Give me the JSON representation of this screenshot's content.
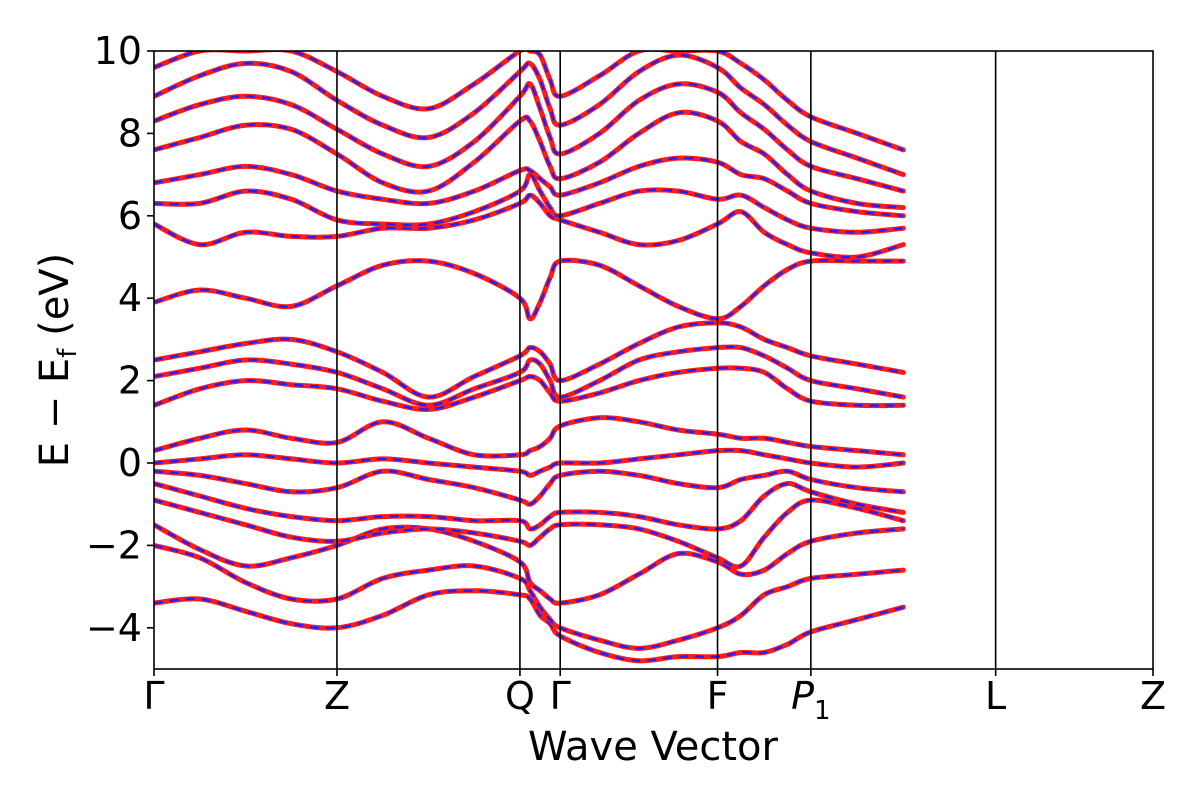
{
  "chart_data": {
    "type": "line",
    "title": "",
    "xlabel": "Wave Vector",
    "ylabel": "E − E_f (eV)",
    "ylabel_parts": {
      "main": "E − E",
      "sub": "f",
      "unit": " (eV)"
    },
    "ylim": [
      -5,
      10
    ],
    "y_ticks": [
      -4,
      -2,
      0,
      2,
      4,
      6,
      8,
      10
    ],
    "y_tick_labels": [
      "−4",
      "−2",
      "0",
      "2",
      "4",
      "6",
      "8",
      "10"
    ],
    "x_ticks": [
      0,
      1,
      2,
      2.22,
      3.08,
      3.59,
      4.6,
      5.46
    ],
    "x_tick_labels": [
      {
        "main": "Γ",
        "sub": ""
      },
      {
        "main": "Z",
        "sub": ""
      },
      {
        "main": "Q",
        "sub": ""
      },
      {
        "main": "Γ",
        "sub": ""
      },
      {
        "main": "F",
        "sub": ""
      },
      {
        "main": "P",
        "sub": "1",
        "italic": true
      },
      {
        "main": "L",
        "sub": ""
      },
      {
        "main": "Z",
        "sub": ""
      }
    ],
    "xlim": [
      0,
      5.46
    ],
    "grid": false,
    "legend": "none",
    "colors": {
      "series_a": "#ff1a1a",
      "series_b": "#1f1fff",
      "axis": "#000000"
    },
    "series_styles": [
      {
        "color": "#ff1a1a",
        "dash": "solid"
      },
      {
        "color": "#1f1fff",
        "dash": "dashed"
      }
    ],
    "bands": [
      [
        -3.4,
        -3.3,
        -3.6,
        -3.9,
        -4.0,
        -3.7,
        -3.2,
        -3.1,
        -3.2,
        -3.3,
        -3.7,
        -3.9,
        -4.2,
        -4.6,
        -4.8,
        -4.7,
        -4.7,
        -4.6,
        -4.6,
        -4.4,
        -4.1,
        -3.8,
        -3.5
      ],
      [
        -2.0,
        -2.3,
        -2.9,
        -3.3,
        -3.3,
        -2.8,
        -2.6,
        -2.5,
        -2.8,
        -3.1,
        -3.5,
        -3.8,
        -4.0,
        -4.3,
        -4.5,
        -4.3,
        -4.0,
        -3.7,
        -3.2,
        -3.0,
        -2.8,
        -2.7,
        -2.6
      ],
      [
        -1.5,
        -2.1,
        -2.5,
        -2.3,
        -2.0,
        -1.6,
        -1.6,
        -1.9,
        -2.4,
        -2.9,
        -3.1,
        -3.3,
        -3.4,
        -3.2,
        -2.7,
        -2.2,
        -2.4,
        -2.7,
        -2.6,
        -2.2,
        -1.9,
        -1.7,
        -1.6
      ],
      [
        -0.9,
        -1.2,
        -1.5,
        -1.8,
        -1.9,
        -1.7,
        -1.6,
        -1.7,
        -1.9,
        -2.0,
        -1.8,
        -1.6,
        -1.5,
        -1.5,
        -1.6,
        -1.9,
        -2.3,
        -2.5,
        -1.8,
        -1.2,
        -0.9,
        -1.1,
        -1.4
      ],
      [
        -0.5,
        -0.8,
        -1.1,
        -1.3,
        -1.4,
        -1.3,
        -1.3,
        -1.4,
        -1.4,
        -1.6,
        -1.5,
        -1.3,
        -1.2,
        -1.2,
        -1.3,
        -1.5,
        -1.6,
        -1.4,
        -0.8,
        -0.5,
        -0.7,
        -1.0,
        -1.2
      ],
      [
        -0.2,
        -0.3,
        -0.5,
        -0.7,
        -0.6,
        -0.2,
        -0.4,
        -0.6,
        -0.9,
        -1.0,
        -0.8,
        -0.5,
        -0.3,
        -0.2,
        -0.3,
        -0.5,
        -0.6,
        -0.4,
        -0.3,
        -0.2,
        -0.4,
        -0.6,
        -0.7
      ],
      [
        0.0,
        0.1,
        0.2,
        0.1,
        0.0,
        0.1,
        0.0,
        -0.1,
        -0.2,
        -0.3,
        -0.2,
        -0.1,
        0.0,
        0.0,
        0.1,
        0.2,
        0.3,
        0.3,
        0.2,
        0.1,
        0.0,
        -0.1,
        0.0
      ],
      [
        0.3,
        0.6,
        0.8,
        0.6,
        0.5,
        1.0,
        0.6,
        0.2,
        0.2,
        0.3,
        0.4,
        0.6,
        0.9,
        1.1,
        1.0,
        0.8,
        0.7,
        0.6,
        0.6,
        0.5,
        0.4,
        0.3,
        0.2
      ],
      [
        1.4,
        1.8,
        2.0,
        1.9,
        1.8,
        1.5,
        1.3,
        1.6,
        2.0,
        2.1,
        2.0,
        1.7,
        1.5,
        1.7,
        2.0,
        2.2,
        2.3,
        2.3,
        2.2,
        1.8,
        1.5,
        1.4,
        1.4
      ],
      [
        2.1,
        2.3,
        2.5,
        2.4,
        2.2,
        1.8,
        1.4,
        1.8,
        2.2,
        2.5,
        2.4,
        2.0,
        1.6,
        2.0,
        2.5,
        2.7,
        2.8,
        2.8,
        2.6,
        2.3,
        2.0,
        1.8,
        1.6
      ],
      [
        2.5,
        2.7,
        2.9,
        3.0,
        2.7,
        2.2,
        1.6,
        2.1,
        2.6,
        2.8,
        2.7,
        2.4,
        2.0,
        2.4,
        2.9,
        3.3,
        3.4,
        3.3,
        3.0,
        2.8,
        2.6,
        2.4,
        2.2
      ],
      [
        3.9,
        4.2,
        4.0,
        3.8,
        4.3,
        4.8,
        4.9,
        4.6,
        4.0,
        3.5,
        3.9,
        4.5,
        4.9,
        4.8,
        4.3,
        3.8,
        3.5,
        3.8,
        4.3,
        4.7,
        4.9,
        4.9,
        4.9
      ],
      [
        5.8,
        5.3,
        5.6,
        5.5,
        5.5,
        5.7,
        5.7,
        5.9,
        6.3,
        6.5,
        6.3,
        6.0,
        5.9,
        5.6,
        5.3,
        5.4,
        5.8,
        6.1,
        5.6,
        5.3,
        5.1,
        5.0,
        5.3
      ],
      [
        6.3,
        6.3,
        6.6,
        6.4,
        5.9,
        5.8,
        5.8,
        6.1,
        6.6,
        7.0,
        6.6,
        6.2,
        6.0,
        6.3,
        6.6,
        6.6,
        6.4,
        6.5,
        6.2,
        5.9,
        5.7,
        5.6,
        5.7
      ],
      [
        6.8,
        7.0,
        7.2,
        7.0,
        6.6,
        6.4,
        6.3,
        6.6,
        7.1,
        7.1,
        6.9,
        6.7,
        6.5,
        6.8,
        7.2,
        7.4,
        7.3,
        7.0,
        6.9,
        6.6,
        6.3,
        6.1,
        6.0
      ],
      [
        7.6,
        7.9,
        8.2,
        8.1,
        7.5,
        6.8,
        6.6,
        7.3,
        8.3,
        8.3,
        7.8,
        7.2,
        6.9,
        7.3,
        8.0,
        8.5,
        8.3,
        7.8,
        7.5,
        7.0,
        6.6,
        6.3,
        6.2
      ],
      [
        8.3,
        8.7,
        8.9,
        8.7,
        8.1,
        7.5,
        7.2,
        7.8,
        8.9,
        9.2,
        8.6,
        7.9,
        7.5,
        8.0,
        8.8,
        9.2,
        9.0,
        8.5,
        8.1,
        7.6,
        7.2,
        6.9,
        6.6
      ],
      [
        8.9,
        9.4,
        9.7,
        9.5,
        8.8,
        8.2,
        7.9,
        8.5,
        9.5,
        9.7,
        9.3,
        8.6,
        8.2,
        8.7,
        9.5,
        9.9,
        9.6,
        9.1,
        8.7,
        8.2,
        7.8,
        7.4,
        7.0
      ],
      [
        9.6,
        10.0,
        10.0,
        10.0,
        9.5,
        8.9,
        8.6,
        9.2,
        10.0,
        10.0,
        9.9,
        9.3,
        8.9,
        9.4,
        10.0,
        10.0,
        10.0,
        9.7,
        9.3,
        8.8,
        8.4,
        8.0,
        7.6
      ]
    ]
  }
}
